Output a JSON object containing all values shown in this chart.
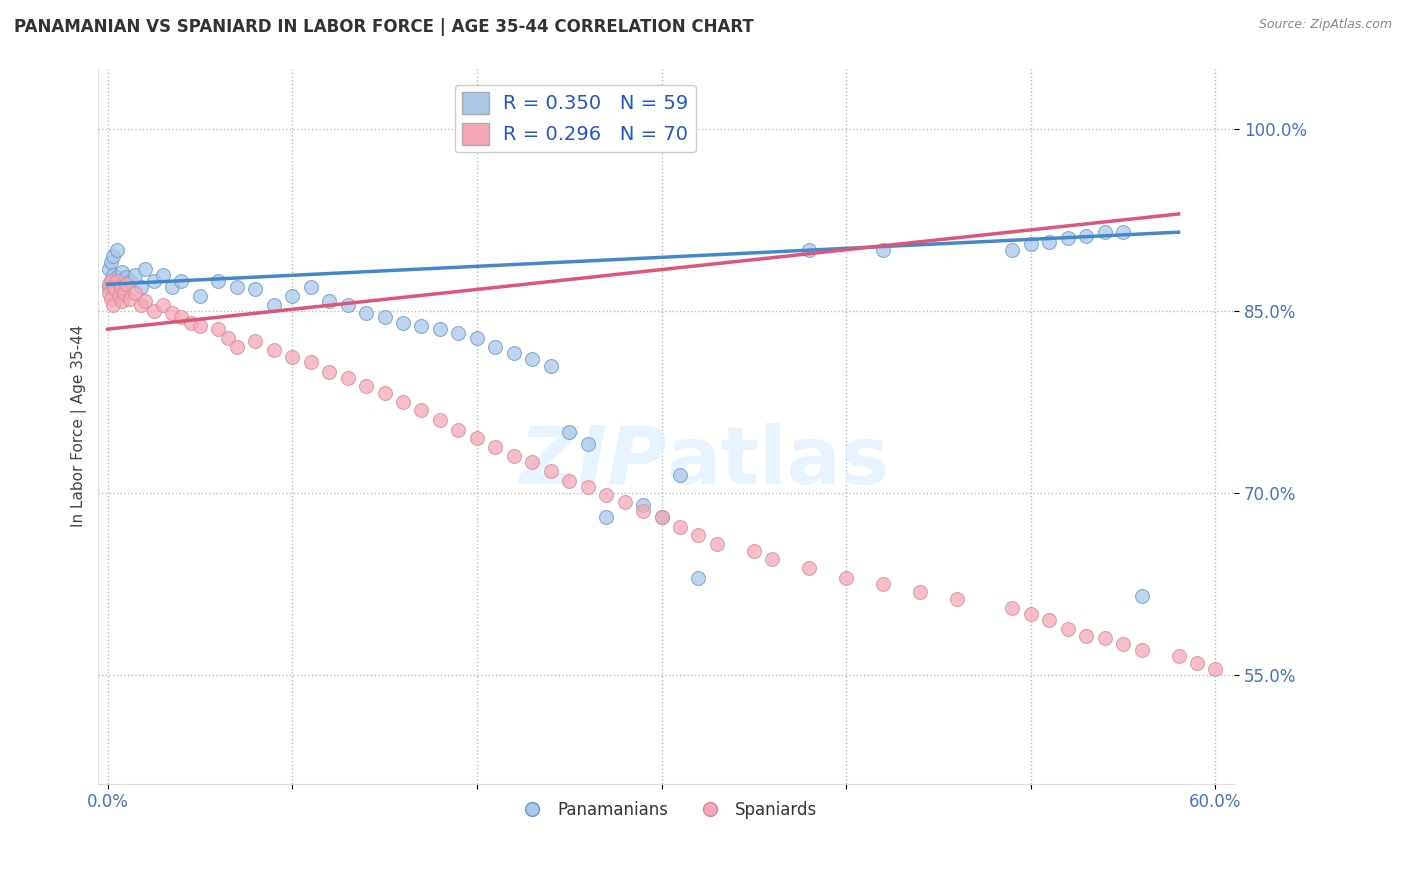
{
  "title": "PANAMANIAN VS SPANIARD IN LABOR FORCE | AGE 35-44 CORRELATION CHART",
  "source": "Source: ZipAtlas.com",
  "ylabel": "In Labor Force | Age 35-44",
  "xlim": [
    -0.005,
    0.61
  ],
  "ylim": [
    0.46,
    1.05
  ],
  "x_tick_positions": [
    0.0,
    0.1,
    0.2,
    0.3,
    0.4,
    0.5,
    0.6
  ],
  "x_tick_labels": [
    "0.0%",
    "",
    "",
    "",
    "",
    "",
    "60.0%"
  ],
  "y_tick_positions": [
    0.55,
    0.7,
    0.85,
    1.0
  ],
  "y_tick_labels": [
    "55.0%",
    "70.0%",
    "85.0%",
    "100.0%"
  ],
  "blue_R": 0.35,
  "blue_N": 59,
  "pink_R": 0.296,
  "pink_N": 70,
  "blue_color": "#a8c8e8",
  "pink_color": "#f4a8b8",
  "blue_edge_color": "#6699cc",
  "pink_edge_color": "#dd8899",
  "blue_line_color": "#4488cc",
  "pink_line_color": "#dd5577",
  "legend_blue_label": "R = 0.350   N = 59",
  "legend_pink_label": "R = 0.296   N = 70",
  "pan_legend": "Panamanians",
  "spa_legend": "Spaniards",
  "blue_line_x": [
    0.0,
    0.58
  ],
  "blue_line_y": [
    0.872,
    0.915
  ],
  "pink_line_x": [
    0.0,
    0.58
  ],
  "pink_line_y": [
    0.835,
    0.93
  ],
  "watermark": "ZIPatlas",
  "blue_x": [
    0.001,
    0.001,
    0.002,
    0.002,
    0.003,
    0.003,
    0.004,
    0.005,
    0.005,
    0.006,
    0.007,
    0.008,
    0.009,
    0.01,
    0.012,
    0.015,
    0.018,
    0.02,
    0.025,
    0.03,
    0.035,
    0.04,
    0.05,
    0.06,
    0.07,
    0.08,
    0.09,
    0.1,
    0.11,
    0.12,
    0.13,
    0.14,
    0.15,
    0.16,
    0.17,
    0.18,
    0.19,
    0.2,
    0.21,
    0.22,
    0.23,
    0.24,
    0.25,
    0.26,
    0.27,
    0.29,
    0.3,
    0.31,
    0.32,
    0.38,
    0.42,
    0.49,
    0.5,
    0.51,
    0.52,
    0.53,
    0.54,
    0.55,
    0.56
  ],
  "blue_y": [
    0.87,
    0.885,
    0.875,
    0.89,
    0.88,
    0.895,
    0.872,
    0.878,
    0.9,
    0.87,
    0.875,
    0.882,
    0.868,
    0.878,
    0.875,
    0.88,
    0.87,
    0.885,
    0.875,
    0.88,
    0.87,
    0.875,
    0.862,
    0.875,
    0.87,
    0.868,
    0.855,
    0.862,
    0.87,
    0.858,
    0.855,
    0.848,
    0.845,
    0.84,
    0.838,
    0.835,
    0.832,
    0.828,
    0.82,
    0.815,
    0.81,
    0.805,
    0.75,
    0.74,
    0.68,
    0.69,
    0.68,
    0.715,
    0.63,
    0.9,
    0.9,
    0.9,
    0.905,
    0.907,
    0.91,
    0.912,
    0.915,
    0.915,
    0.615
  ],
  "pink_x": [
    0.001,
    0.001,
    0.002,
    0.002,
    0.003,
    0.003,
    0.004,
    0.005,
    0.006,
    0.007,
    0.008,
    0.009,
    0.01,
    0.012,
    0.015,
    0.018,
    0.02,
    0.025,
    0.03,
    0.035,
    0.04,
    0.045,
    0.05,
    0.06,
    0.065,
    0.07,
    0.08,
    0.09,
    0.1,
    0.11,
    0.12,
    0.13,
    0.14,
    0.15,
    0.16,
    0.17,
    0.18,
    0.19,
    0.2,
    0.21,
    0.22,
    0.23,
    0.24,
    0.25,
    0.26,
    0.27,
    0.28,
    0.29,
    0.3,
    0.31,
    0.32,
    0.33,
    0.35,
    0.36,
    0.38,
    0.4,
    0.42,
    0.44,
    0.46,
    0.49,
    0.5,
    0.51,
    0.52,
    0.53,
    0.54,
    0.55,
    0.56,
    0.58,
    0.59,
    0.6
  ],
  "pink_y": [
    0.872,
    0.865,
    0.875,
    0.86,
    0.87,
    0.855,
    0.868,
    0.875,
    0.862,
    0.87,
    0.858,
    0.865,
    0.872,
    0.86,
    0.865,
    0.855,
    0.858,
    0.85,
    0.855,
    0.848,
    0.845,
    0.84,
    0.838,
    0.835,
    0.828,
    0.82,
    0.825,
    0.818,
    0.812,
    0.808,
    0.8,
    0.795,
    0.788,
    0.782,
    0.775,
    0.768,
    0.76,
    0.752,
    0.745,
    0.738,
    0.73,
    0.725,
    0.718,
    0.71,
    0.705,
    0.698,
    0.692,
    0.685,
    0.68,
    0.672,
    0.665,
    0.658,
    0.652,
    0.645,
    0.638,
    0.63,
    0.625,
    0.618,
    0.612,
    0.605,
    0.6,
    0.595,
    0.588,
    0.582,
    0.58,
    0.575,
    0.57,
    0.565,
    0.56,
    0.555
  ]
}
